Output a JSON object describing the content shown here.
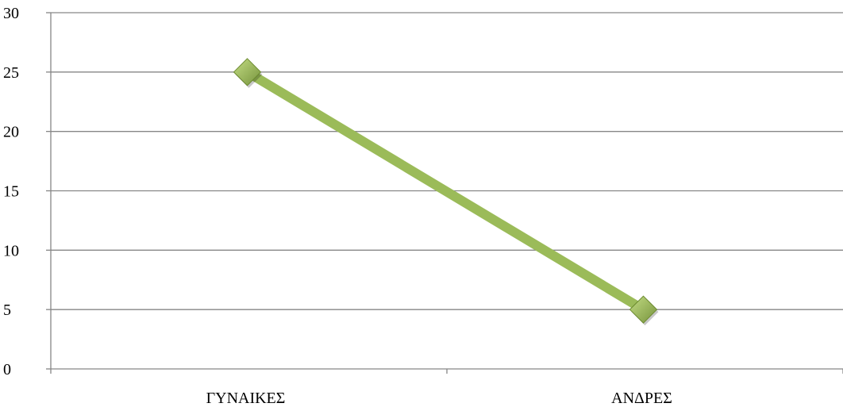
{
  "chart_data": {
    "type": "line",
    "categories": [
      "ΓΥΝΑΙΚΕΣ",
      "ΑΝΔΡΕΣ"
    ],
    "series": [
      {
        "values": [
          25,
          5
        ]
      }
    ],
    "ylim": [
      0,
      30
    ],
    "yticks": [
      0,
      5,
      10,
      15,
      20,
      25,
      30
    ],
    "ytick_labels": [
      "0",
      "5",
      "10",
      "15",
      "20",
      "25",
      "30"
    ],
    "grid": true,
    "legend": "none",
    "marker": "diamond",
    "colors": {
      "line": "#9bbb59",
      "marker_fill_light": "#c3dc84",
      "marker_fill_dark": "#76933c",
      "marker_stroke": "#6b8a2e",
      "gridline": "#868686",
      "axis": "#868686"
    }
  }
}
